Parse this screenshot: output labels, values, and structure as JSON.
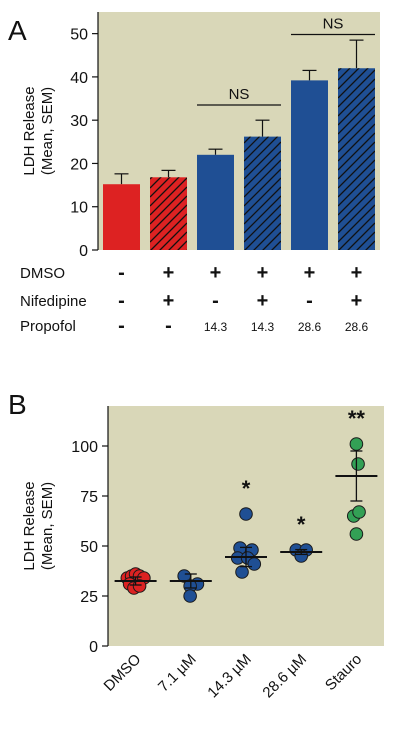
{
  "chart_data": [
    {
      "panel_label": "A",
      "type": "bar",
      "ylabel_lines": [
        "LDH Release",
        "(Mean, SEM)"
      ],
      "ylim": [
        0,
        55
      ],
      "yticks": [
        0,
        10,
        20,
        30,
        40,
        50
      ],
      "bars": [
        {
          "value": 15.2,
          "sem": 2.4,
          "color": "#dd2222",
          "hatched": false
        },
        {
          "value": 16.8,
          "sem": 1.6,
          "color": "#dd2222",
          "hatched": true
        },
        {
          "value": 22.0,
          "sem": 1.3,
          "color": "#1f4f94",
          "hatched": false
        },
        {
          "value": 26.2,
          "sem": 3.8,
          "color": "#1f4f94",
          "hatched": true
        },
        {
          "value": 39.2,
          "sem": 2.3,
          "color": "#1f4f94",
          "hatched": false
        },
        {
          "value": 42.0,
          "sem": 6.5,
          "color": "#1f4f94",
          "hatched": true
        }
      ],
      "annotations": [
        {
          "text": "NS",
          "from_bar": 2,
          "to_bar": 3,
          "y": 33.5
        },
        {
          "text": "NS",
          "from_bar": 4,
          "to_bar": 5,
          "y": 49.8
        }
      ],
      "condition_rows": [
        {
          "label": "DMSO",
          "cells": [
            "-",
            "+",
            "+",
            "+",
            "+",
            "+"
          ]
        },
        {
          "label": "Nifedipine",
          "cells": [
            "-",
            "+",
            "-",
            "+",
            "-",
            "+"
          ]
        },
        {
          "label": "Propofol",
          "cells": [
            "-",
            "-",
            "14.3",
            "14.3",
            "28.6",
            "28.6"
          ]
        }
      ]
    },
    {
      "panel_label": "B",
      "type": "scatter",
      "ylabel_lines": [
        "LDH Release",
        "(Mean, SEM)"
      ],
      "ylim": [
        0,
        120
      ],
      "yticks": [
        0,
        25,
        50,
        75,
        100
      ],
      "categories": [
        "DMSO",
        "7.1 µM",
        "14.3 µM",
        "28.6 µM",
        "Stauro"
      ],
      "groups": [
        {
          "color": "#dd2222",
          "mean": 32.5,
          "sem": 2.0,
          "sig": "",
          "points": [
            [
              -0.25,
              34
            ],
            [
              -0.12,
              35
            ],
            [
              0.0,
              36
            ],
            [
              0.12,
              35
            ],
            [
              0.25,
              34
            ],
            [
              -0.18,
              31
            ],
            [
              -0.05,
              29
            ],
            [
              0.12,
              30
            ]
          ]
        },
        {
          "color": "#1f4f94",
          "mean": 32.5,
          "sem": 3.5,
          "sig": "",
          "points": [
            [
              -0.2,
              35
            ],
            [
              0.2,
              31
            ],
            [
              -0.02,
              30
            ],
            [
              -0.02,
              25
            ]
          ]
        },
        {
          "color": "#1f4f94",
          "mean": 44.5,
          "sem": 4.8,
          "sig": "*",
          "points": [
            [
              0.0,
              66
            ],
            [
              -0.18,
              49
            ],
            [
              0.18,
              48
            ],
            [
              -0.25,
              44
            ],
            [
              0.05,
              44
            ],
            [
              0.25,
              41
            ],
            [
              -0.12,
              37
            ]
          ]
        },
        {
          "color": "#1f4f94",
          "mean": 47.0,
          "sem": 1.2,
          "sig": "*",
          "points": [
            [
              -0.15,
              48
            ],
            [
              0.15,
              48
            ],
            [
              0.0,
              45
            ]
          ]
        },
        {
          "color": "#33a055",
          "mean": 85.0,
          "sem": 12.5,
          "sig": "**",
          "points": [
            [
              0.0,
              101
            ],
            [
              0.05,
              91
            ],
            [
              -0.08,
              65
            ],
            [
              0.08,
              67
            ],
            [
              0.0,
              56
            ]
          ]
        }
      ]
    }
  ]
}
